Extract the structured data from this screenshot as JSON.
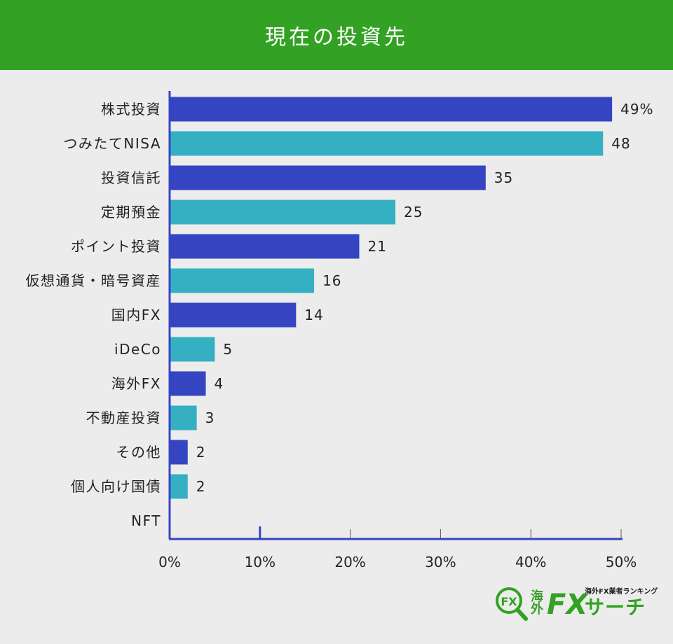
{
  "header": {
    "title": "現在の投資先"
  },
  "colors": {
    "header_bg": "#33a123",
    "bar_primary": "#3545c2",
    "bar_secondary": "#35b0c2",
    "axis": "#3545c2"
  },
  "chart_data": {
    "type": "bar",
    "orientation": "horizontal",
    "title": "現在の投資先",
    "categories": [
      "株式投資",
      "つみたてNISA",
      "投資信託",
      "定期預金",
      "ポイント投資",
      "仮想通貨・暗号資産",
      "国内FX",
      "iDeCo",
      "海外FX",
      "不動産投資",
      "その他",
      "個人向け国債",
      "NFT"
    ],
    "values": [
      49,
      48,
      35,
      25,
      21,
      16,
      14,
      5,
      4,
      3,
      2,
      2,
      0
    ],
    "value_labels": [
      "49%",
      "48",
      "35",
      "25",
      "21",
      "16",
      "14",
      "5",
      "4",
      "3",
      "2",
      "2",
      ""
    ],
    "xlim": [
      0,
      50
    ],
    "xticks": [
      "0%",
      "10%",
      "20%",
      "30%",
      "40%",
      "50%"
    ],
    "xlabel": "",
    "ylabel": "",
    "grid": false,
    "bar_colors": "alternating primary/secondary"
  },
  "logo": {
    "kanji": "海外",
    "fx": "FX",
    "name": "サーチ",
    "tagline": "海外FX業者ランキング",
    "badge": "FX"
  }
}
